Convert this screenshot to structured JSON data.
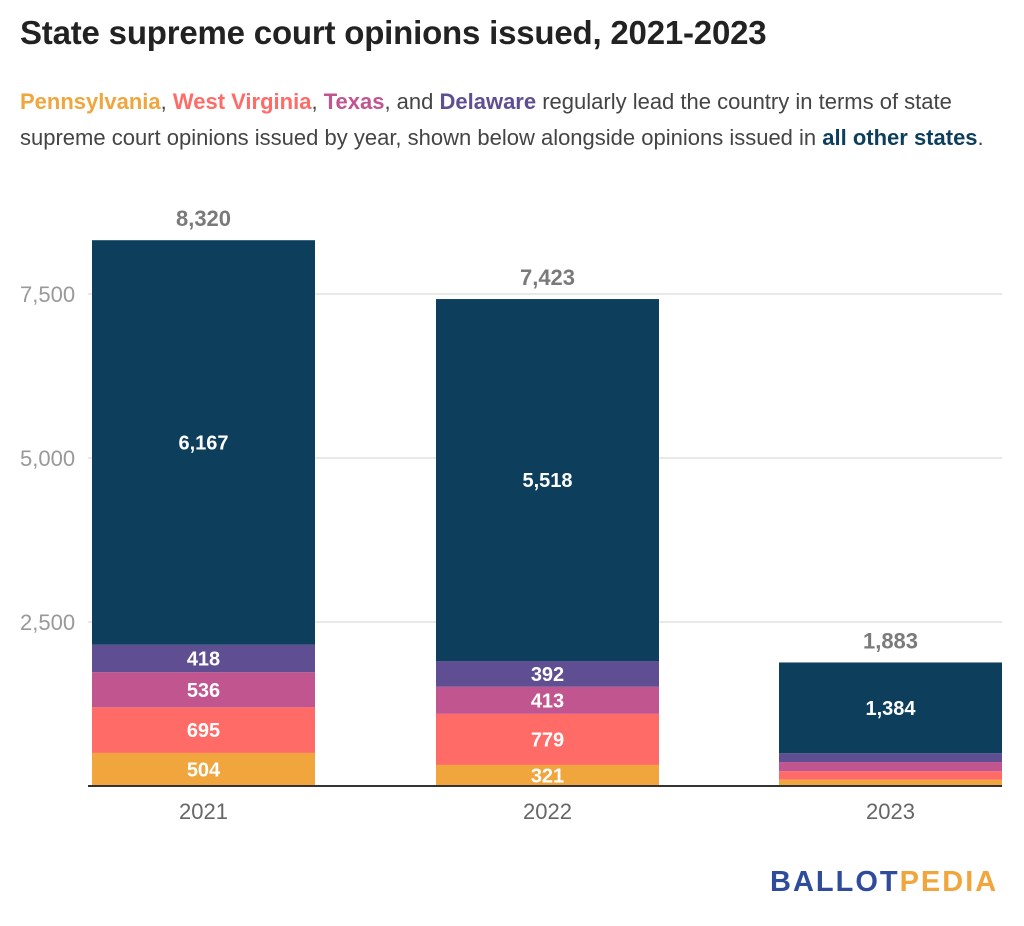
{
  "title": "State supreme court opinions issued, 2021-2023",
  "subtitle": {
    "states": [
      {
        "label": "Pennsylvania",
        "color": "#f0a63c"
      },
      {
        "label": "West Virginia",
        "color": "#ff6b67"
      },
      {
        "label": "Texas",
        "color": "#c15590"
      },
      {
        "label": "Delaware",
        "color": "#5f4f92"
      }
    ],
    "sep1": ", ",
    "sep2": ", ",
    "sep3": ", and ",
    "text_middle": " regularly lead the country in terms of state supreme court opinions issued by year, shown below alongside opinions issued in ",
    "other_label": "all other states",
    "other_color": "#0d3f5c",
    "text_end": "."
  },
  "logo": {
    "part1": "BALLOT",
    "part1_color": "#2f4b9c",
    "part2": "PEDIA",
    "part2_color": "#f0a63c"
  },
  "chart_data": {
    "type": "bar",
    "stacked": true,
    "categories": [
      "2021",
      "2022",
      "2023"
    ],
    "series": [
      {
        "name": "Pennsylvania",
        "color": "#f0a63c",
        "values": [
          504,
          321,
          95
        ],
        "labels": [
          "504",
          "321",
          ""
        ]
      },
      {
        "name": "West Virginia",
        "color": "#ff6b67",
        "values": [
          695,
          779,
          130
        ],
        "labels": [
          "695",
          "779",
          ""
        ]
      },
      {
        "name": "Texas",
        "color": "#c15590",
        "values": [
          536,
          413,
          140
        ],
        "labels": [
          "536",
          "413",
          ""
        ]
      },
      {
        "name": "Delaware",
        "color": "#5f4f92",
        "values": [
          418,
          392,
          134
        ],
        "labels": [
          "418",
          "392",
          ""
        ]
      },
      {
        "name": "all other states",
        "color": "#0d3f5c",
        "values": [
          6167,
          5518,
          1384
        ],
        "labels": [
          "6,167",
          "5,518",
          "1,384"
        ]
      }
    ],
    "totals": [
      "8,320",
      "7,423",
      "1,883"
    ],
    "ylim": [
      0,
      8320
    ],
    "yticks": [
      2500,
      5000,
      7500
    ],
    "ytick_labels": [
      "2,500",
      "5,000",
      "7,500"
    ],
    "grid": true,
    "legend": "none"
  }
}
